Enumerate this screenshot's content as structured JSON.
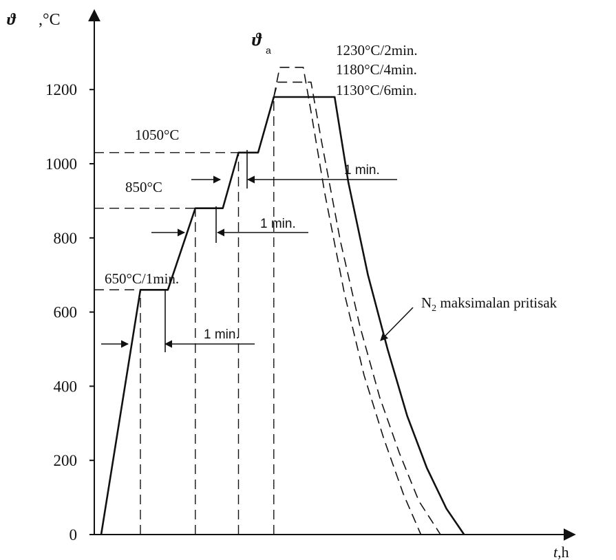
{
  "chart_data": {
    "type": "line",
    "title": "",
    "ylabel_symbol": "ϑ",
    "ylabel_unit": ",°C",
    "xlabel_symbol": "t",
    "xlabel_unit": ",h",
    "ylim": [
      0,
      1300
    ],
    "y_ticks": [
      0,
      200,
      400,
      600,
      800,
      1000,
      1200
    ],
    "y_tick_labels": [
      "0",
      "200",
      "400",
      "600",
      "800",
      "1000",
      "1200"
    ],
    "x_ticks_shown": false,
    "series": [
      {
        "line_style": "solid",
        "points": [
          [
            0,
            0
          ],
          [
            10,
            660
          ],
          [
            17,
            660
          ],
          [
            24,
            880
          ],
          [
            31,
            880
          ],
          [
            35,
            1030
          ],
          [
            40,
            1030
          ],
          [
            44,
            1180
          ],
          [
            59.5,
            1180
          ],
          [
            63,
            950
          ],
          [
            68,
            700
          ],
          [
            73,
            500
          ],
          [
            78,
            320
          ],
          [
            83,
            180
          ],
          [
            88,
            70
          ],
          [
            92.5,
            0
          ]
        ]
      },
      {
        "line_style": "dashed",
        "points": [
          [
            44,
            1180
          ],
          [
            45,
            1220
          ],
          [
            53.5,
            1220
          ],
          [
            56,
            1070
          ],
          [
            61,
            790
          ],
          [
            66,
            560
          ],
          [
            71,
            370
          ],
          [
            76,
            220
          ],
          [
            81,
            90
          ],
          [
            86.5,
            0
          ]
        ]
      },
      {
        "line_style": "dashed",
        "points": [
          [
            44,
            1180
          ],
          [
            45.5,
            1260
          ],
          [
            51.5,
            1260
          ],
          [
            53.5,
            1140
          ],
          [
            57,
            920
          ],
          [
            62,
            650
          ],
          [
            67,
            430
          ],
          [
            72,
            260
          ],
          [
            77,
            110
          ],
          [
            81.5,
            0
          ]
        ]
      }
    ],
    "guides": {
      "horizontal": [
        {
          "y": 660,
          "x_from": 0,
          "x_to": 10
        },
        {
          "y": 880,
          "x_from": 0,
          "x_to": 24
        },
        {
          "y": 1030,
          "x_from": 0,
          "x_to": 35
        }
      ],
      "vertical": [
        10,
        24,
        35,
        44
      ]
    },
    "annotations": {
      "step_650": "650°C/1min.",
      "step_850": "850°C",
      "step_1050": "1050°C",
      "peak_symbol": "ϑ",
      "peak_subscript": "a",
      "peak_1230": "1230°C/2min.",
      "peak_1180": "1180°C/4min.",
      "peak_1130": "1130°C/6min.",
      "hold_1": "1 min.",
      "hold_2": "1 min.",
      "hold_3": "1 min.",
      "quench_main": "N",
      "quench_sub": "2",
      "quench_rest": " maksimalan pritisak"
    }
  }
}
